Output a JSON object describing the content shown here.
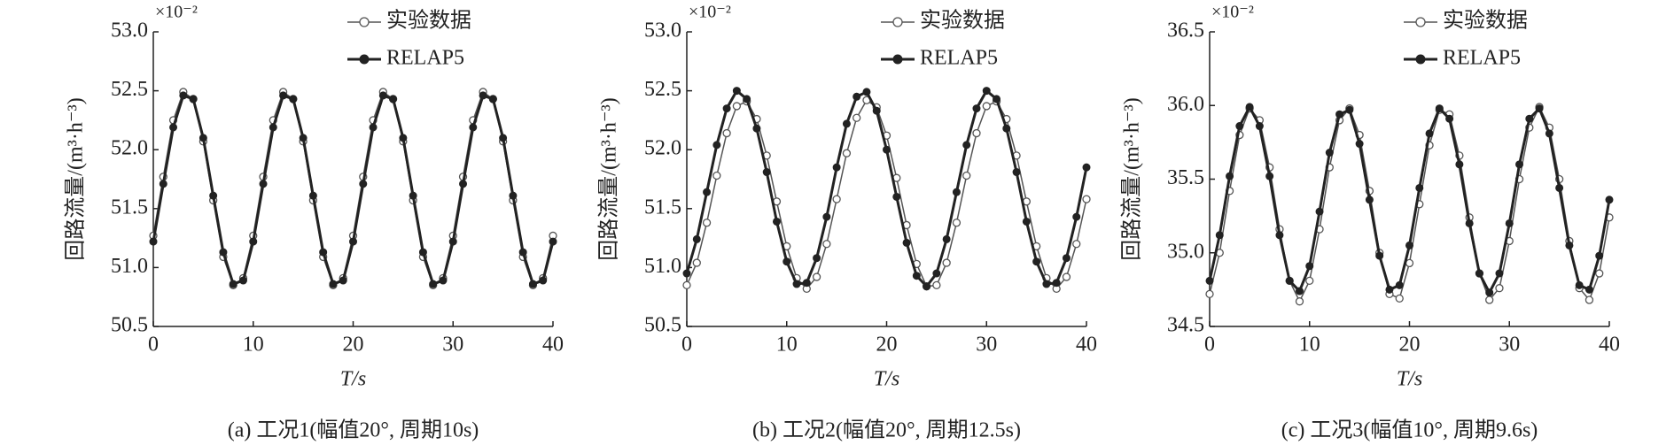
{
  "chart_data": [
    {
      "type": "line",
      "caption": "(a) 工况1(幅值20°, 周期10s)",
      "xlabel": "T/s",
      "ylabel": "回路流量/(m³·h⁻³)",
      "y_multiplier": "×10⁻²",
      "legend": "upper right",
      "x": [
        0,
        1,
        2,
        3,
        4,
        5,
        6,
        7,
        8,
        9,
        10,
        11,
        12,
        13,
        14,
        15,
        16,
        17,
        18,
        19,
        20,
        21,
        22,
        23,
        24,
        25,
        26,
        27,
        28,
        29,
        30,
        31,
        32,
        33,
        34,
        35,
        36,
        37,
        38,
        39,
        40
      ],
      "series": [
        {
          "name": "实验数据",
          "color": "#555555",
          "marker": "open-circle",
          "values": [
            51.27,
            51.77,
            52.25,
            52.49,
            52.43,
            52.07,
            51.57,
            51.09,
            50.85,
            50.91,
            51.27,
            51.77,
            52.25,
            52.49,
            52.43,
            52.07,
            51.57,
            51.09,
            50.85,
            50.91,
            51.27,
            51.77,
            52.25,
            52.49,
            52.43,
            52.07,
            51.57,
            51.09,
            50.85,
            50.91,
            51.27,
            51.77,
            52.25,
            52.49,
            52.43,
            52.07,
            51.57,
            51.09,
            50.85,
            50.91,
            51.27
          ]
        },
        {
          "name": "RELAP5",
          "color": "#222222",
          "marker": "filled-circle",
          "values": [
            51.22,
            51.71,
            52.19,
            52.46,
            52.43,
            52.1,
            51.61,
            51.13,
            50.86,
            50.89,
            51.22,
            51.71,
            52.19,
            52.46,
            52.43,
            52.1,
            51.61,
            51.13,
            50.86,
            50.89,
            51.22,
            51.71,
            52.19,
            52.46,
            52.43,
            52.1,
            51.61,
            51.13,
            50.86,
            50.89,
            51.22,
            51.71,
            52.19,
            52.46,
            52.43,
            52.1,
            51.61,
            51.13,
            50.86,
            50.89,
            51.22
          ]
        }
      ],
      "xlim": [
        0,
        40
      ],
      "xticks": [
        0,
        10,
        20,
        30,
        40
      ],
      "ylim": [
        50.5,
        53
      ],
      "yticks": [
        50.5,
        {
          "value": 51,
          "label": "51.0"
        },
        51.5,
        {
          "value": 52,
          "label": "52.0"
        },
        52.5,
        {
          "value": 53,
          "label": "53.0"
        }
      ]
    },
    {
      "type": "line",
      "caption": "(b) 工况2(幅值20°, 周期12.5s)",
      "xlabel": "T/s",
      "ylabel": "回路流量/(m³·h⁻³)",
      "y_multiplier": "×10⁻²",
      "legend": "upper right",
      "x": [
        0,
        1,
        2,
        3,
        4,
        5,
        6,
        7,
        8,
        9,
        10,
        11,
        12,
        13,
        14,
        15,
        16,
        17,
        18,
        19,
        20,
        21,
        22,
        23,
        24,
        25,
        26,
        27,
        28,
        29,
        30,
        31,
        32,
        33,
        34,
        35,
        36,
        37,
        38,
        39,
        40
      ],
      "series": [
        {
          "name": "实验数据",
          "color": "#555555",
          "marker": "open-circle",
          "values": [
            50.85,
            51.04,
            51.38,
            51.78,
            52.14,
            52.37,
            52.41,
            52.26,
            51.95,
            51.56,
            51.18,
            50.91,
            50.82,
            50.92,
            51.2,
            51.58,
            51.97,
            52.27,
            52.42,
            52.36,
            52.12,
            51.76,
            51.36,
            51.03,
            50.84,
            50.85,
            51.04,
            51.38,
            51.78,
            52.14,
            52.37,
            52.41,
            52.26,
            51.95,
            51.56,
            51.18,
            50.91,
            50.82,
            50.92,
            51.2,
            51.58
          ]
        },
        {
          "name": "RELAP5",
          "color": "#222222",
          "marker": "filled-circle",
          "values": [
            50.95,
            51.24,
            51.64,
            52.04,
            52.35,
            52.5,
            52.43,
            52.18,
            51.81,
            51.39,
            51.05,
            50.86,
            50.87,
            51.08,
            51.43,
            51.85,
            52.22,
            52.45,
            52.49,
            52.33,
            52.0,
            51.6,
            51.21,
            50.93,
            50.84,
            50.95,
            51.24,
            51.64,
            52.04,
            52.35,
            52.5,
            52.43,
            52.18,
            51.81,
            51.39,
            51.05,
            50.86,
            50.87,
            51.08,
            51.43,
            51.85
          ]
        }
      ],
      "xlim": [
        0,
        40
      ],
      "xticks": [
        0,
        10,
        20,
        30,
        40
      ],
      "ylim": [
        50.5,
        53
      ],
      "yticks": [
        50.5,
        {
          "value": 51,
          "label": "51.0"
        },
        51.5,
        {
          "value": 52,
          "label": "52.0"
        },
        52.5,
        {
          "value": 53,
          "label": "53.0"
        }
      ]
    },
    {
      "type": "line",
      "caption": "(c) 工况3(幅值10°, 周期9.6s)",
      "xlabel": "T/s",
      "ylabel": "回路流量/(m³·h⁻³)",
      "y_multiplier": "×10⁻²",
      "legend": "upper right",
      "x": [
        0,
        1,
        2,
        3,
        4,
        5,
        6,
        7,
        8,
        9,
        10,
        11,
        12,
        13,
        14,
        15,
        16,
        17,
        18,
        19,
        20,
        21,
        22,
        23,
        24,
        25,
        26,
        27,
        28,
        29,
        30,
        31,
        32,
        33,
        34,
        35,
        36,
        37,
        38,
        39,
        40
      ],
      "series": [
        {
          "name": "实验数据",
          "color": "#555555",
          "marker": "open-circle",
          "values": [
            34.72,
            35.0,
            35.42,
            35.8,
            35.98,
            35.9,
            35.58,
            35.16,
            34.81,
            34.67,
            34.81,
            35.16,
            35.58,
            35.9,
            35.98,
            35.8,
            35.42,
            35.0,
            34.72,
            34.69,
            34.93,
            35.33,
            35.73,
            35.97,
            35.94,
            35.66,
            35.24,
            34.86,
            34.68,
            34.76,
            35.08,
            35.5,
            35.85,
            35.99,
            35.85,
            35.5,
            35.08,
            34.76,
            34.68,
            34.86,
            35.24
          ]
        },
        {
          "name": "RELAP5",
          "color": "#222222",
          "marker": "filled-circle",
          "values": [
            34.81,
            35.12,
            35.52,
            35.86,
            35.99,
            35.86,
            35.52,
            35.12,
            34.81,
            34.74,
            34.91,
            35.28,
            35.68,
            35.94,
            35.97,
            35.74,
            35.36,
            34.98,
            34.75,
            34.78,
            35.05,
            35.44,
            35.81,
            35.98,
            35.91,
            35.6,
            35.2,
            34.86,
            34.73,
            34.86,
            35.2,
            35.6,
            35.91,
            35.98,
            35.81,
            35.44,
            35.05,
            34.78,
            34.75,
            34.98,
            35.36
          ]
        }
      ],
      "xlim": [
        0,
        40
      ],
      "xticks": [
        0,
        10,
        20,
        30,
        40
      ],
      "ylim": [
        34.5,
        36.5
      ],
      "yticks": [
        34.5,
        {
          "value": 35,
          "label": "35.0"
        },
        35.5,
        {
          "value": 36,
          "label": "36.0"
        },
        36.5
      ]
    }
  ]
}
